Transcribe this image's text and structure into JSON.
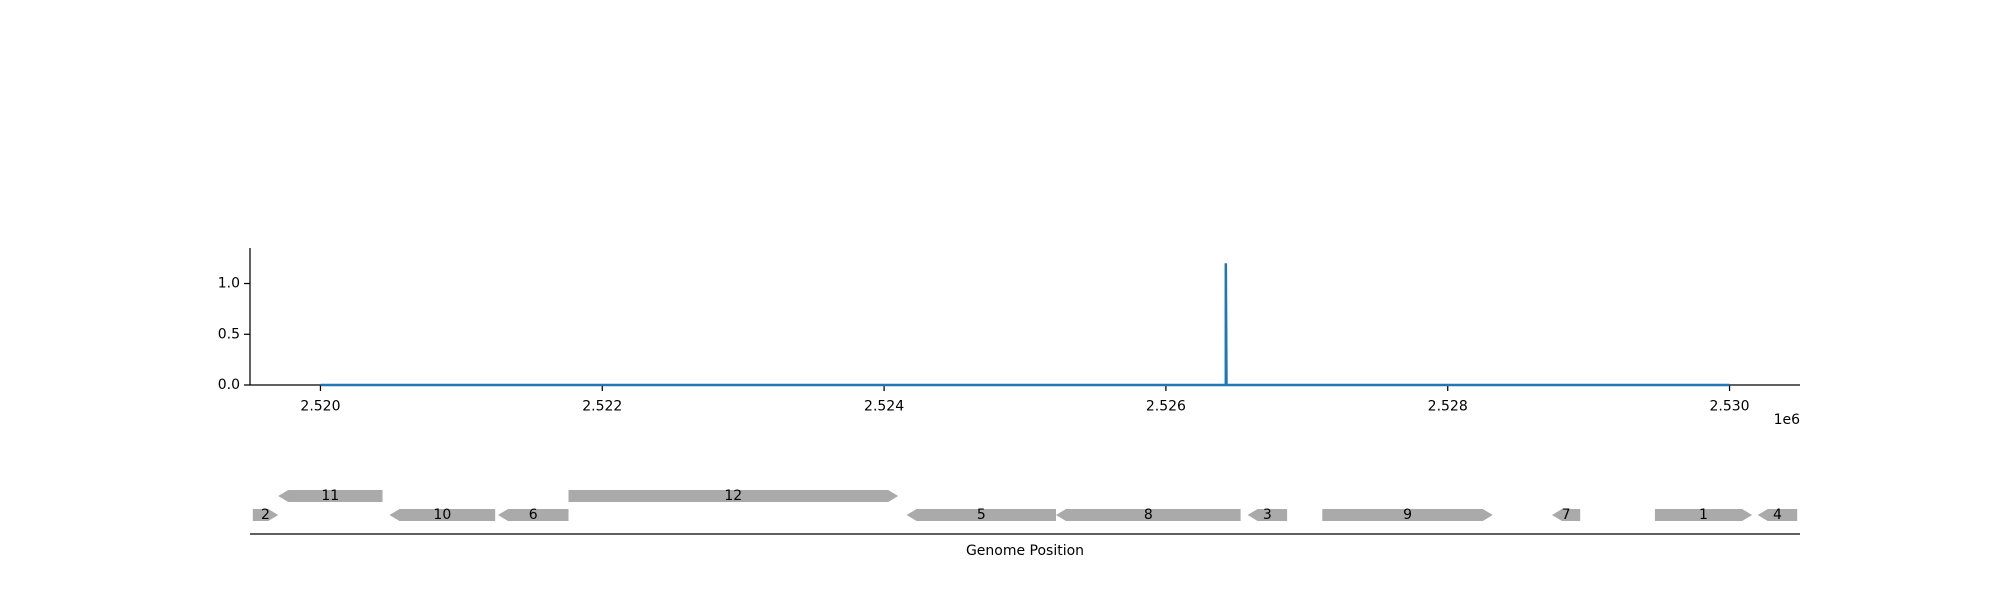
{
  "chart_data": [
    {
      "type": "line",
      "title": "",
      "xlabel": "",
      "ylabel": "",
      "x_offset_label": "1e6",
      "xlim": [
        2519500,
        2530500
      ],
      "ylim": [
        0,
        1.35
      ],
      "xticks": [
        2520000,
        2522000,
        2524000,
        2526000,
        2528000,
        2530000
      ],
      "xtick_labels": [
        "2.520",
        "2.522",
        "2.524",
        "2.526",
        "2.528",
        "2.530"
      ],
      "yticks": [
        0.0,
        0.5,
        1.0
      ],
      "ytick_labels": [
        "0.0",
        "0.5",
        "1.0"
      ],
      "color": "#1f77b4",
      "grid": false,
      "legend": "none",
      "series": [
        {
          "x": [
            2520000,
            2526425,
            2526425,
            2526425,
            2526430,
            2530000
          ],
          "y": [
            0,
            0,
            1.2,
            1.2,
            0,
            0
          ]
        }
      ]
    },
    {
      "type": "gene_track",
      "xlabel": "Genome Position",
      "xlim": [
        2519500,
        2530500
      ],
      "color": "#aaaaaa",
      "genes": [
        {
          "label": "2",
          "start": 2519520,
          "end": 2519700,
          "strand": "+",
          "row": 0
        },
        {
          "label": "11",
          "start": 2519700,
          "end": 2520440,
          "strand": "-",
          "row": 1
        },
        {
          "label": "10",
          "start": 2520490,
          "end": 2521240,
          "strand": "-",
          "row": 0
        },
        {
          "label": "6",
          "start": 2521260,
          "end": 2521760,
          "strand": "-",
          "row": 0
        },
        {
          "label": "12",
          "start": 2521760,
          "end": 2524100,
          "strand": "+",
          "row": 1
        },
        {
          "label": "5",
          "start": 2524160,
          "end": 2525220,
          "strand": "-",
          "row": 0
        },
        {
          "label": "8",
          "start": 2525220,
          "end": 2526530,
          "strand": "-",
          "row": 0
        },
        {
          "label": "3",
          "start": 2526580,
          "end": 2526860,
          "strand": "-",
          "row": 0
        },
        {
          "label": "9",
          "start": 2527110,
          "end": 2528320,
          "strand": "+",
          "row": 0
        },
        {
          "label": "7",
          "start": 2528740,
          "end": 2528940,
          "strand": "-",
          "row": 0
        },
        {
          "label": "1",
          "start": 2529470,
          "end": 2530160,
          "strand": "+",
          "row": 0
        },
        {
          "label": "4",
          "start": 2530200,
          "end": 2530480,
          "strand": "-",
          "row": 0
        }
      ]
    }
  ]
}
